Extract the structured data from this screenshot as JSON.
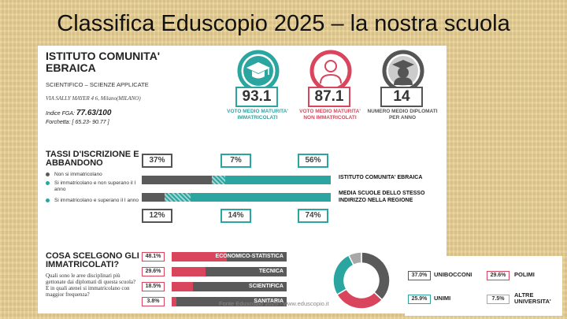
{
  "slide_title": "Classifica Eduscopio 2025 – la nostra scuola",
  "school": {
    "name": "ISTITUTO COMUNITA' EBRAICA",
    "track": "SCIENTIFICO – SCIENZE APPLICATE",
    "address": "VIA SALLY MAYER 4 6, Milano(MILANO)",
    "fga_label": "Indice FGA:",
    "fga_value": "77.63/100",
    "range_label": "Forchetta:",
    "range_value": "[ 65.23- 90.77 ]"
  },
  "metrics": [
    {
      "value": "93.1",
      "label": "VOTO MEDIO MATURITA' IMMATRICOLATI",
      "color": "#2aa5a0",
      "icon": "graduation-cap-icon"
    },
    {
      "value": "87.1",
      "label": "VOTO MEDIO MATURITA' NON IMMATRICOLATI",
      "color": "#d8455c",
      "icon": "person-icon"
    },
    {
      "value": "14",
      "label": "NUMERO MEDIO DIPLOMATI PER ANNO",
      "color": "#555555",
      "icon": "student-icon"
    }
  ],
  "enrollment": {
    "title": "TASSI D'ISCRIZIONE E ABBANDONO",
    "legend": [
      {
        "label": "Non si immatricolano",
        "color": "#5a5a5a"
      },
      {
        "label": "Si immatricolano e non superano il I anno",
        "color": "#2aa5a0"
      },
      {
        "label": "Si immatricolano e superano il I anno",
        "color": "#2aa5a0"
      }
    ],
    "school_label": "ISTITUTO COMUNITA' EBRAICA",
    "school_pct": [
      "37%",
      "7%",
      "56%"
    ],
    "school_values": [
      37,
      7,
      56
    ],
    "avg_label": "MEDIA SCUOLE DELLO STESSO INDIRIZZO NELLA REGIONE",
    "avg_pct": [
      "12%",
      "14%",
      "74%"
    ],
    "avg_values": [
      12,
      14,
      74
    ]
  },
  "choices": {
    "title": "COSA SCELGONO GLI IMMATRICOLATI?",
    "question": "Quali sono le aree disciplinari più gettonate dai diplomati di questa scuola? E in quali atenei si immatricolano con maggior frequenza?",
    "areas": [
      {
        "pct": "48.1%",
        "label": "ECONOMICO-STATISTICA",
        "value": 48.1
      },
      {
        "pct": "29.6%",
        "label": "TECNICA",
        "value": 29.6
      },
      {
        "pct": "18.5%",
        "label": "SCIENTIFICA",
        "value": 18.5
      },
      {
        "pct": "3.8%",
        "label": "SANITARIA",
        "value": 3.8
      }
    ]
  },
  "universities": [
    {
      "pct": "37.0%",
      "label": "UNIBOCCONI",
      "value": 37.0,
      "color": "#5a5a5a"
    },
    {
      "pct": "29.6%",
      "label": "POLIMI",
      "value": 29.6,
      "color": "#d8455c"
    },
    {
      "pct": "25.9%",
      "label": "UNIMI",
      "value": 25.9,
      "color": "#2aa5a0"
    },
    {
      "pct": "7.5%",
      "label": "ALTRE UNIVERSITA'",
      "value": 7.5,
      "color": "#a8a8a8"
    }
  ],
  "footer": "Fonte Eduscopio 2025 - www.eduscopio.it"
}
